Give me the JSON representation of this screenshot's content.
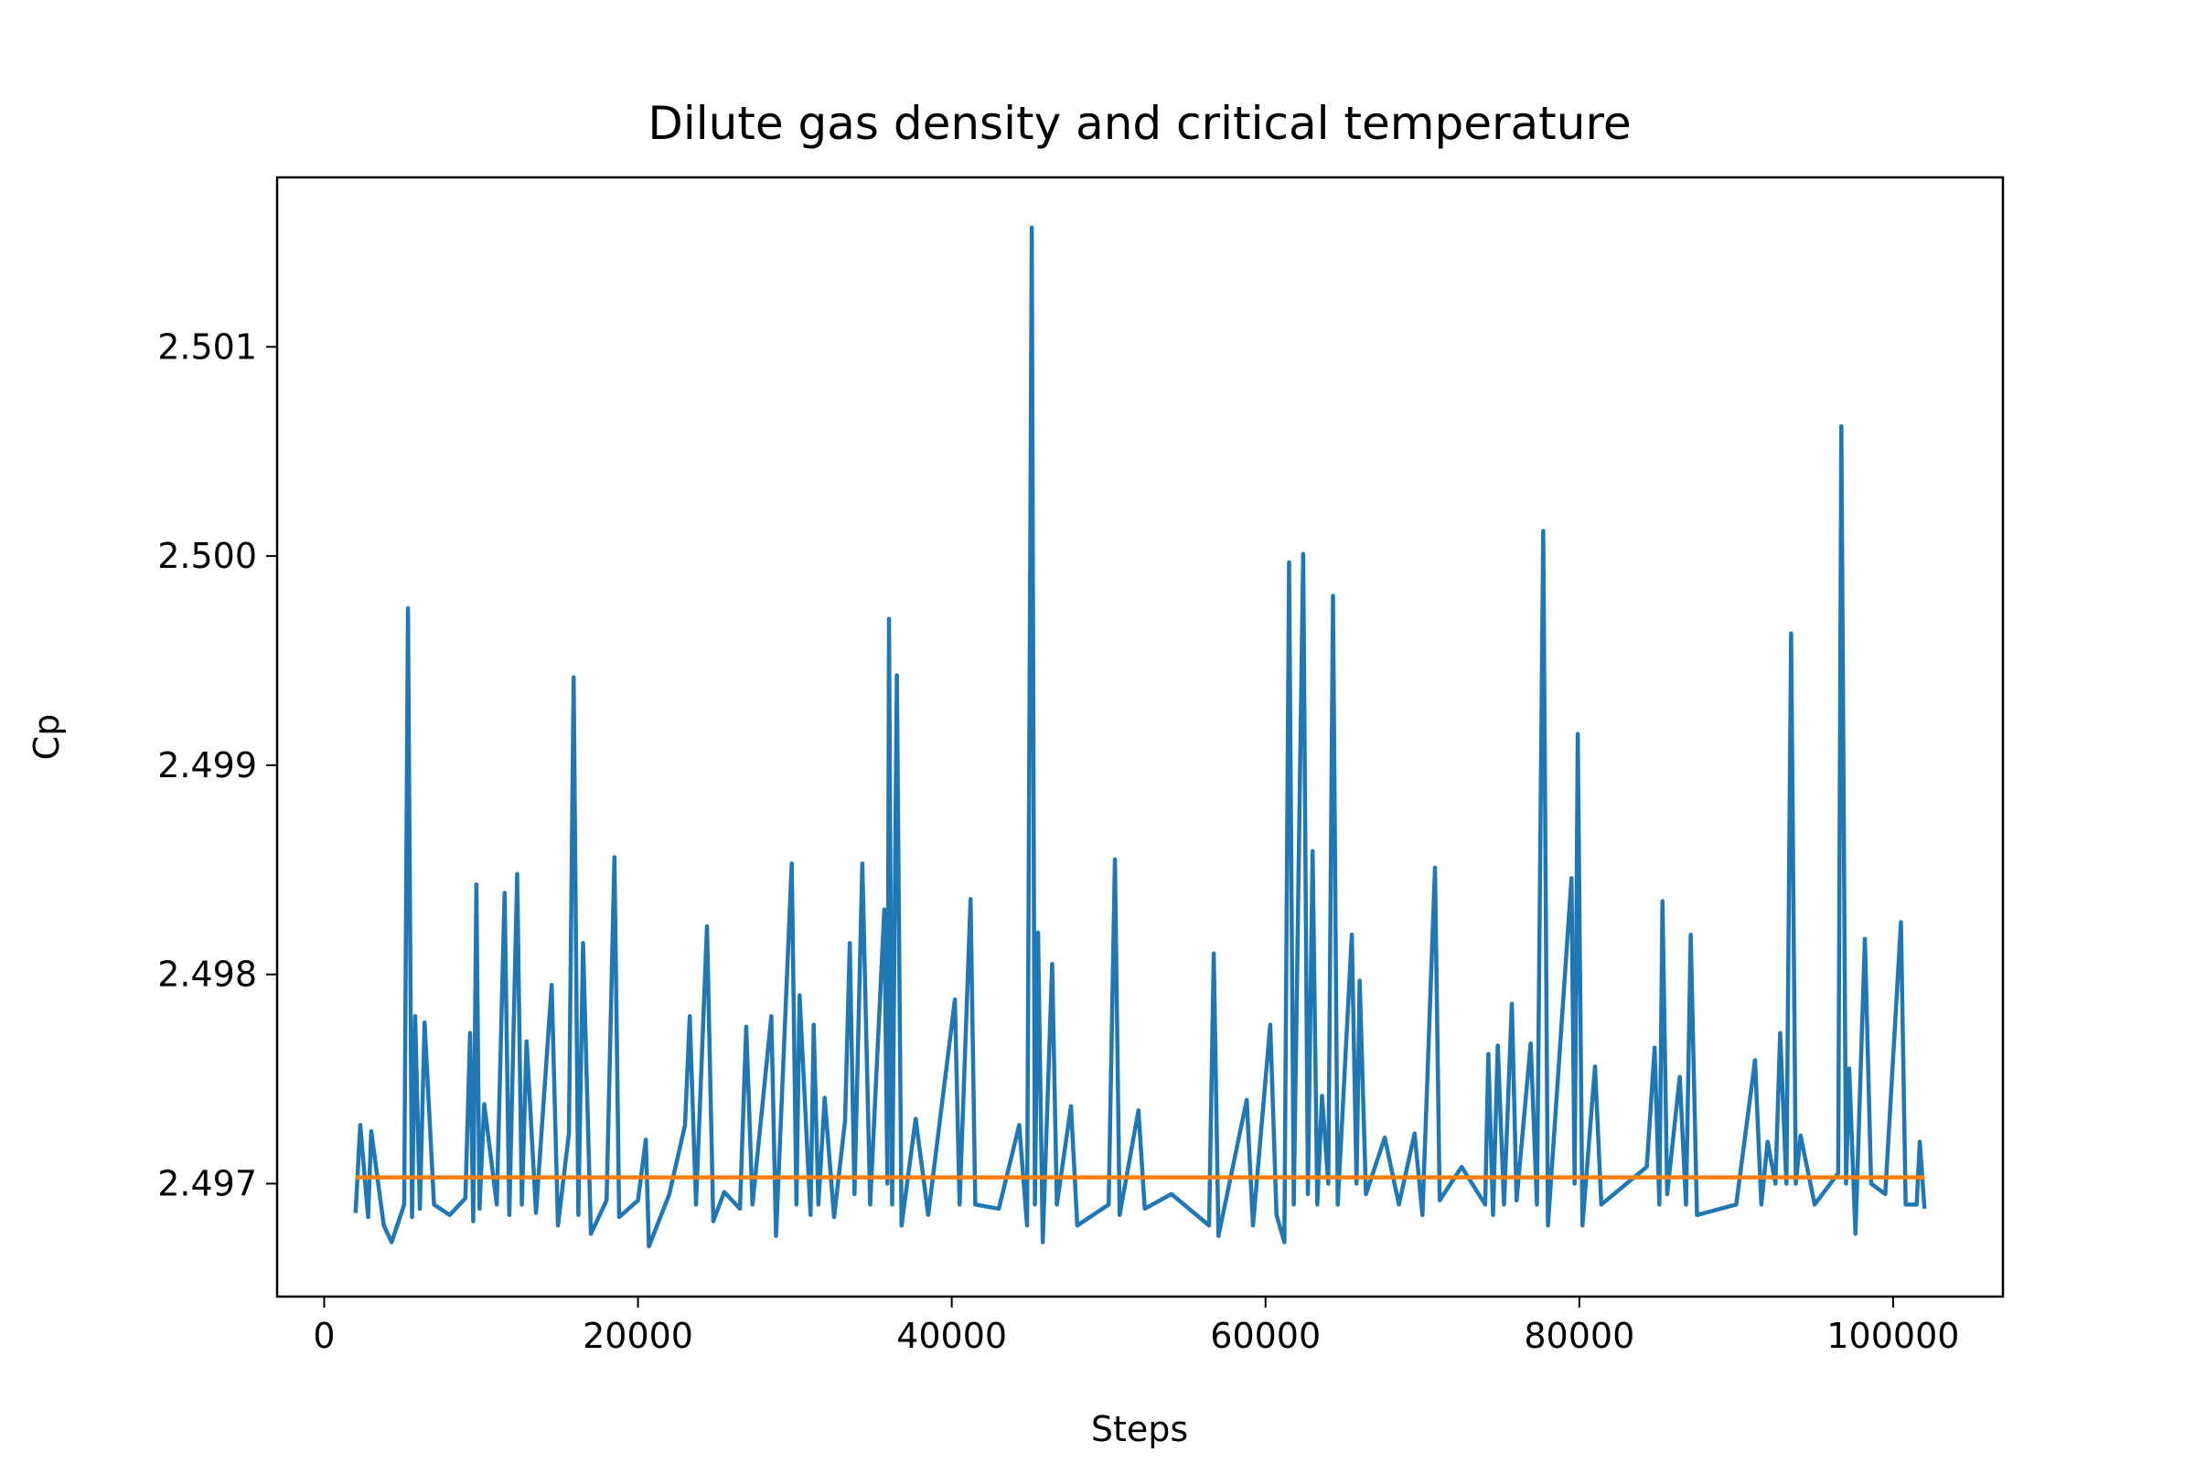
{
  "chart_data": {
    "type": "line",
    "title": "Dilute gas density and critical temperature",
    "x_label": "Steps",
    "y_label": "Cp",
    "xlim": [
      -3000,
      107000
    ],
    "ylim": [
      2.49646,
      2.50181
    ],
    "xticks": [
      0,
      20000,
      40000,
      60000,
      80000,
      100000
    ],
    "yticks": [
      2.497,
      2.498,
      2.499,
      {
        "value": 2.5,
        "label": "2.500"
      },
      2.501
    ],
    "series": [
      {
        "color": "#1f77b4",
        "x": [
          2000,
          2300,
          2800,
          3000,
          3800,
          4300,
          5100,
          5340,
          5600,
          5800,
          6100,
          6400,
          7000,
          8000,
          9000,
          9300,
          9500,
          9700,
          9900,
          10200,
          11000,
          11500,
          11800,
          12300,
          12600,
          12900,
          13500,
          14500,
          14900,
          15600,
          15900,
          16200,
          16500,
          17000,
          18000,
          18500,
          18800,
          20000,
          20500,
          20700,
          22000,
          23000,
          23300,
          23700,
          24400,
          24800,
          25500,
          26500,
          26900,
          27300,
          28500,
          28800,
          29800,
          30100,
          30300,
          31000,
          31200,
          31500,
          31900,
          32500,
          33200,
          33500,
          33800,
          34300,
          34800,
          35700,
          35900,
          36000,
          36200,
          36500,
          36800,
          37700,
          38500,
          40200,
          40500,
          41200,
          41500,
          43000,
          44300,
          44800,
          45100,
          45300,
          45500,
          45800,
          46400,
          46700,
          47600,
          48000,
          50000,
          50400,
          50700,
          51900,
          52300,
          54000,
          56400,
          56700,
          57000,
          58800,
          59200,
          60300,
          60700,
          61200,
          61500,
          61800,
          62400,
          62700,
          63000,
          63300,
          63600,
          64000,
          64300,
          64600,
          65500,
          65800,
          66000,
          66400,
          67600,
          68500,
          69500,
          70000,
          70800,
          71100,
          72500,
          74000,
          74200,
          74500,
          74800,
          75200,
          75700,
          76000,
          76900,
          77300,
          77700,
          78000,
          79500,
          79700,
          79900,
          80200,
          81000,
          81400,
          84300,
          84800,
          85100,
          85300,
          85600,
          86400,
          86800,
          87100,
          87500,
          90000,
          91200,
          91600,
          92000,
          92500,
          92800,
          93200,
          93500,
          93800,
          94100,
          95000,
          96500,
          96700,
          97000,
          97200,
          97600,
          98200,
          98600,
          99500,
          100500,
          100800,
          101500,
          101700,
          102000
        ],
        "values": [
          2.49686,
          2.49728,
          2.49684,
          2.49725,
          2.4968,
          2.49672,
          2.4969,
          2.49975,
          2.49684,
          2.4978,
          2.49688,
          2.49777,
          2.4969,
          2.49685,
          2.49693,
          2.49772,
          2.49682,
          2.49843,
          2.49688,
          2.49738,
          2.4969,
          2.49839,
          2.49685,
          2.49848,
          2.4969,
          2.49768,
          2.49686,
          2.49795,
          2.4968,
          2.49724,
          2.49942,
          2.49685,
          2.49815,
          2.49676,
          2.49692,
          2.49856,
          2.49684,
          2.49692,
          2.49721,
          2.4967,
          2.49695,
          2.49728,
          2.4978,
          2.4969,
          2.49823,
          2.49682,
          2.49696,
          2.49688,
          2.49775,
          2.4969,
          2.4978,
          2.49675,
          2.49853,
          2.4969,
          2.4979,
          2.49685,
          2.49776,
          2.4969,
          2.49741,
          2.49684,
          2.4973,
          2.49815,
          2.49695,
          2.49853,
          2.4969,
          2.49831,
          2.497,
          2.4997,
          2.4969,
          2.49943,
          2.4968,
          2.49731,
          2.49685,
          2.49788,
          2.4969,
          2.49836,
          2.4969,
          2.49688,
          2.49728,
          2.4968,
          2.50157,
          2.4969,
          2.4982,
          2.49672,
          2.49805,
          2.4969,
          2.49737,
          2.4968,
          2.4969,
          2.49855,
          2.49685,
          2.49735,
          2.49688,
          2.49695,
          2.4968,
          2.4981,
          2.49675,
          2.4974,
          2.4968,
          2.49776,
          2.49685,
          2.49672,
          2.49997,
          2.4969,
          2.50001,
          2.49695,
          2.49859,
          2.4969,
          2.49742,
          2.497,
          2.49981,
          2.4969,
          2.49819,
          2.497,
          2.49797,
          2.49695,
          2.49722,
          2.4969,
          2.49724,
          2.49685,
          2.49851,
          2.49692,
          2.49708,
          2.4969,
          2.49762,
          2.49685,
          2.49766,
          2.4969,
          2.49786,
          2.49692,
          2.49767,
          2.4969,
          2.50012,
          2.4968,
          2.49846,
          2.497,
          2.49915,
          2.4968,
          2.49756,
          2.4969,
          2.49708,
          2.49765,
          2.4969,
          2.49835,
          2.49695,
          2.49751,
          2.4969,
          2.49819,
          2.49685,
          2.4969,
          2.49759,
          2.4969,
          2.4972,
          2.497,
          2.49772,
          2.497,
          2.49963,
          2.497,
          2.49723,
          2.4969,
          2.49705,
          2.50062,
          2.497,
          2.49755,
          2.49676,
          2.49817,
          2.497,
          2.49695,
          2.49825,
          2.4969,
          2.4969,
          2.4972,
          2.49688
        ]
      },
      {
        "color": "#ff7f0e",
        "x": [
          2000,
          102000
        ],
        "values": [
          2.49703,
          2.49703
        ]
      }
    ]
  }
}
